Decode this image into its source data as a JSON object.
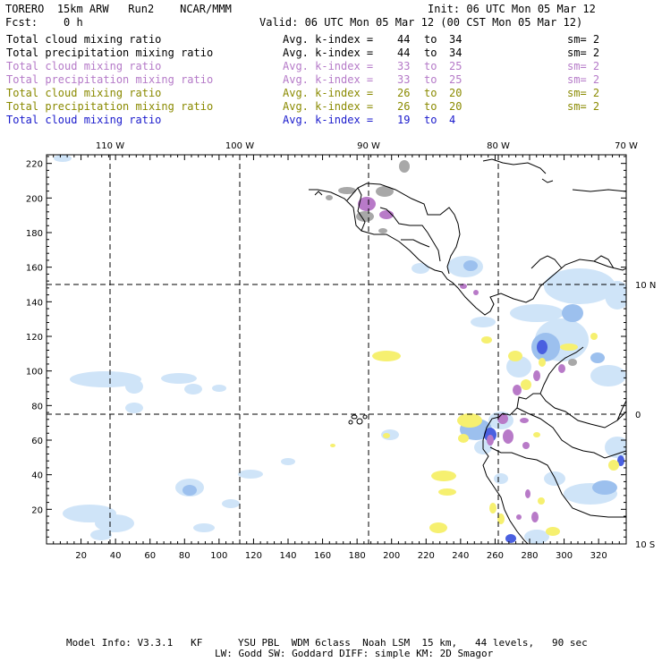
{
  "header": {
    "model": "TORERO",
    "resolution": "15km ARW",
    "run": "Run2",
    "org": "NCAR/MMM",
    "init": "Init: 06 UTC Mon 05 Mar 12",
    "fcst_label": "Fcst:",
    "fcst_value": "0 h",
    "valid": "Valid: 06 UTC Mon 05 Mar 12 (00 CST Mon 05 Mar 12)"
  },
  "legend": [
    {
      "field": "Total cloud mixing ratio",
      "avg": "Avg. k-index =",
      "from": "44",
      "to_word": "to",
      "to": "34",
      "sm": "sm= 2",
      "color": "#000000"
    },
    {
      "field": "Total precipitation mixing ratio",
      "avg": "Avg. k-index =",
      "from": "44",
      "to_word": "to",
      "to": "34",
      "sm": "sm= 2",
      "color": "#000000"
    },
    {
      "field": "Total cloud mixing ratio",
      "avg": "Avg. k-index =",
      "from": "33",
      "to_word": "to",
      "to": "25",
      "sm": "sm= 2",
      "color": "#b57ac8"
    },
    {
      "field": "Total precipitation mixing ratio",
      "avg": "Avg. k-index =",
      "from": "33",
      "to_word": "to",
      "to": "25",
      "sm": "sm= 2",
      "color": "#b57ac8"
    },
    {
      "field": "Total cloud mixing ratio",
      "avg": "Avg. k-index =",
      "from": "26",
      "to_word": "to",
      "to": "20",
      "sm": "sm= 2",
      "color": "#8a8a00"
    },
    {
      "field": "Total precipitation mixing ratio",
      "avg": "Avg. k-index =",
      "from": "26",
      "to_word": "to",
      "to": "20",
      "sm": "sm= 2",
      "color": "#8a8a00"
    },
    {
      "field": "Total cloud mixing ratio",
      "avg": "Avg. k-index =",
      "from": "19",
      "to_word": "to",
      "to": "4",
      "sm": "",
      "color": "#1a1acc"
    }
  ],
  "map": {
    "lon_labels": [
      "110 W",
      "100 W",
      "90 W",
      "80 W",
      "70 W"
    ],
    "lat_labels": [
      "10 N",
      "0",
      "10 S"
    ],
    "x_ticks": [
      "20",
      "40",
      "60",
      "80",
      "100",
      "120",
      "140",
      "160",
      "180",
      "200",
      "220",
      "240",
      "260",
      "280",
      "300",
      "320"
    ],
    "y_ticks": [
      "20",
      "40",
      "60",
      "80",
      "100",
      "120",
      "140",
      "160",
      "180",
      "200",
      "220"
    ],
    "colors": {
      "light_blue": "#cfe4f8",
      "mid_blue": "#9cc0ee",
      "deep_blue": "#4a60e0",
      "gray": "#a8a8a8",
      "purple": "#b87ac8",
      "yellow": "#f6f070"
    }
  },
  "footer": {
    "line1": "Model Info: V3.3.1   KF      YSU PBL  WDM 6class  Noah LSM  15 km,   44 levels,   90 sec",
    "line2": "LW: Godd SW: Goddard DIFF: simple KM: 2D Smagor"
  }
}
